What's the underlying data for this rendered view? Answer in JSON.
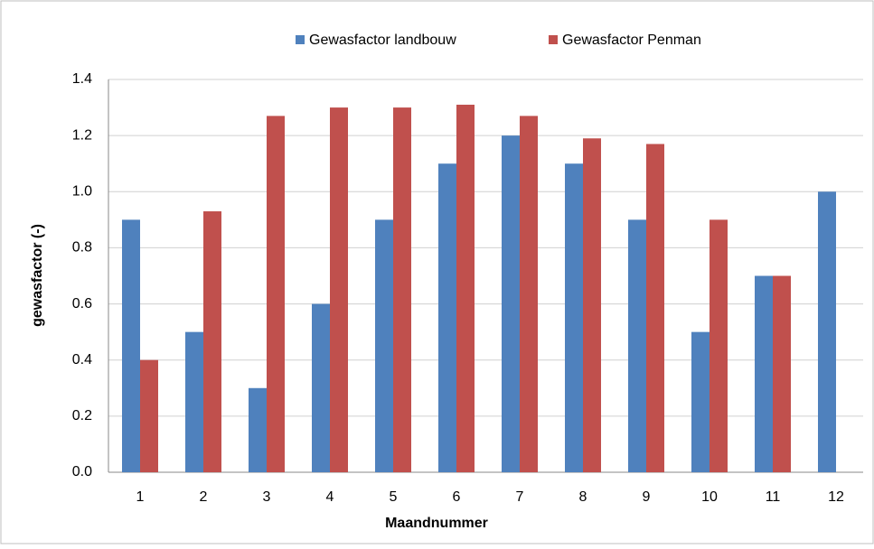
{
  "chart_data": {
    "type": "bar",
    "x_label": "Maandnummer",
    "y_label": "gewasfactor (-)",
    "categories": [
      "1",
      "2",
      "3",
      "4",
      "5",
      "6",
      "7",
      "8",
      "9",
      "10",
      "11",
      "12"
    ],
    "series": [
      {
        "name": "Gewasfactor landbouw",
        "color": "#4f81bd",
        "values": [
          0.9,
          0.5,
          0.3,
          0.6,
          0.9,
          1.1,
          1.2,
          1.1,
          0.9,
          0.5,
          0.7,
          1.0
        ]
      },
      {
        "name": "Gewasfactor Penman",
        "color": "#c0504d",
        "values": [
          0.4,
          0.93,
          1.27,
          1.3,
          1.3,
          1.31,
          1.27,
          1.19,
          1.17,
          0.9,
          0.7,
          null
        ]
      }
    ],
    "ylim": [
      0,
      1.4
    ],
    "yticks": [
      {
        "value": 0,
        "label": "0.0"
      },
      0.2,
      0.4,
      0.6,
      0.8,
      {
        "value": 1,
        "label": "1.0"
      },
      1.2,
      1.4
    ],
    "grid": true,
    "legend": "top"
  }
}
